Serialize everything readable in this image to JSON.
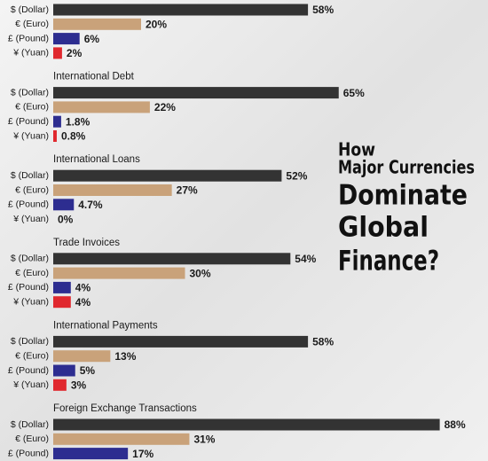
{
  "heading": {
    "lines": [
      "How",
      "Major Currencies",
      "Dominate",
      "Global",
      "Finance?"
    ]
  },
  "chart_data": [
    {
      "type": "bar",
      "categories": [
        "$ (Dollar)",
        "€ (Euro)",
        "£ (Pound)",
        "¥ (Yuan)"
      ],
      "series": [
        {
          "values": [
            58,
            20,
            6,
            2
          ],
          "value_labels": [
            "58%",
            "20%",
            "6%",
            "2%"
          ],
          "colors": [
            "#333333",
            "#c9a27a",
            "#2d2d90",
            "#e0282e"
          ]
        }
      ]
    },
    {
      "type": "bar",
      "title": "International Debt",
      "categories": [
        "$ (Dollar)",
        "€ (Euro)",
        "£ (Pound)",
        "¥ (Yuan)"
      ],
      "series": [
        {
          "values": [
            65,
            22,
            1.8,
            0.8
          ],
          "value_labels": [
            "65%",
            "22%",
            "1.8%",
            "0.8%"
          ],
          "colors": [
            "#333333",
            "#c9a27a",
            "#2d2d90",
            "#e0282e"
          ]
        }
      ]
    },
    {
      "type": "bar",
      "title": "International Loans",
      "categories": [
        "$ (Dollar)",
        "€ (Euro)",
        "£ (Pound)",
        "¥ (Yuan)"
      ],
      "series": [
        {
          "values": [
            52,
            27,
            4.7,
            0
          ],
          "value_labels": [
            "52%",
            "27%",
            "4.7%",
            "0%"
          ],
          "colors": [
            "#333333",
            "#c9a27a",
            "#2d2d90",
            "#e0282e"
          ]
        }
      ]
    },
    {
      "type": "bar",
      "title": "Trade Invoices",
      "categories": [
        "$ (Dollar)",
        "€ (Euro)",
        "£ (Pound)",
        "¥ (Yuan)"
      ],
      "series": [
        {
          "values": [
            54,
            30,
            4,
            4
          ],
          "value_labels": [
            "54%",
            "30%",
            "4%",
            "4%"
          ],
          "colors": [
            "#333333",
            "#c9a27a",
            "#2d2d90",
            "#e0282e"
          ]
        }
      ]
    },
    {
      "type": "bar",
      "title": "International Payments",
      "categories": [
        "$ (Dollar)",
        "€ (Euro)",
        "£ (Pound)",
        "¥ (Yuan)"
      ],
      "series": [
        {
          "values": [
            58,
            13,
            5,
            3
          ],
          "value_labels": [
            "58%",
            "13%",
            "5%",
            "3%"
          ],
          "colors": [
            "#333333",
            "#c9a27a",
            "#2d2d90",
            "#e0282e"
          ]
        }
      ]
    },
    {
      "type": "bar",
      "title": "Foreign Exchange Transactions",
      "categories": [
        "$ (Dollar)",
        "€ (Euro)",
        "£ (Pound)"
      ],
      "series": [
        {
          "values": [
            88,
            31,
            17
          ],
          "value_labels": [
            "88%",
            "31%",
            "17%"
          ],
          "colors": [
            "#333333",
            "#c9a27a",
            "#2d2d90"
          ]
        }
      ]
    }
  ]
}
